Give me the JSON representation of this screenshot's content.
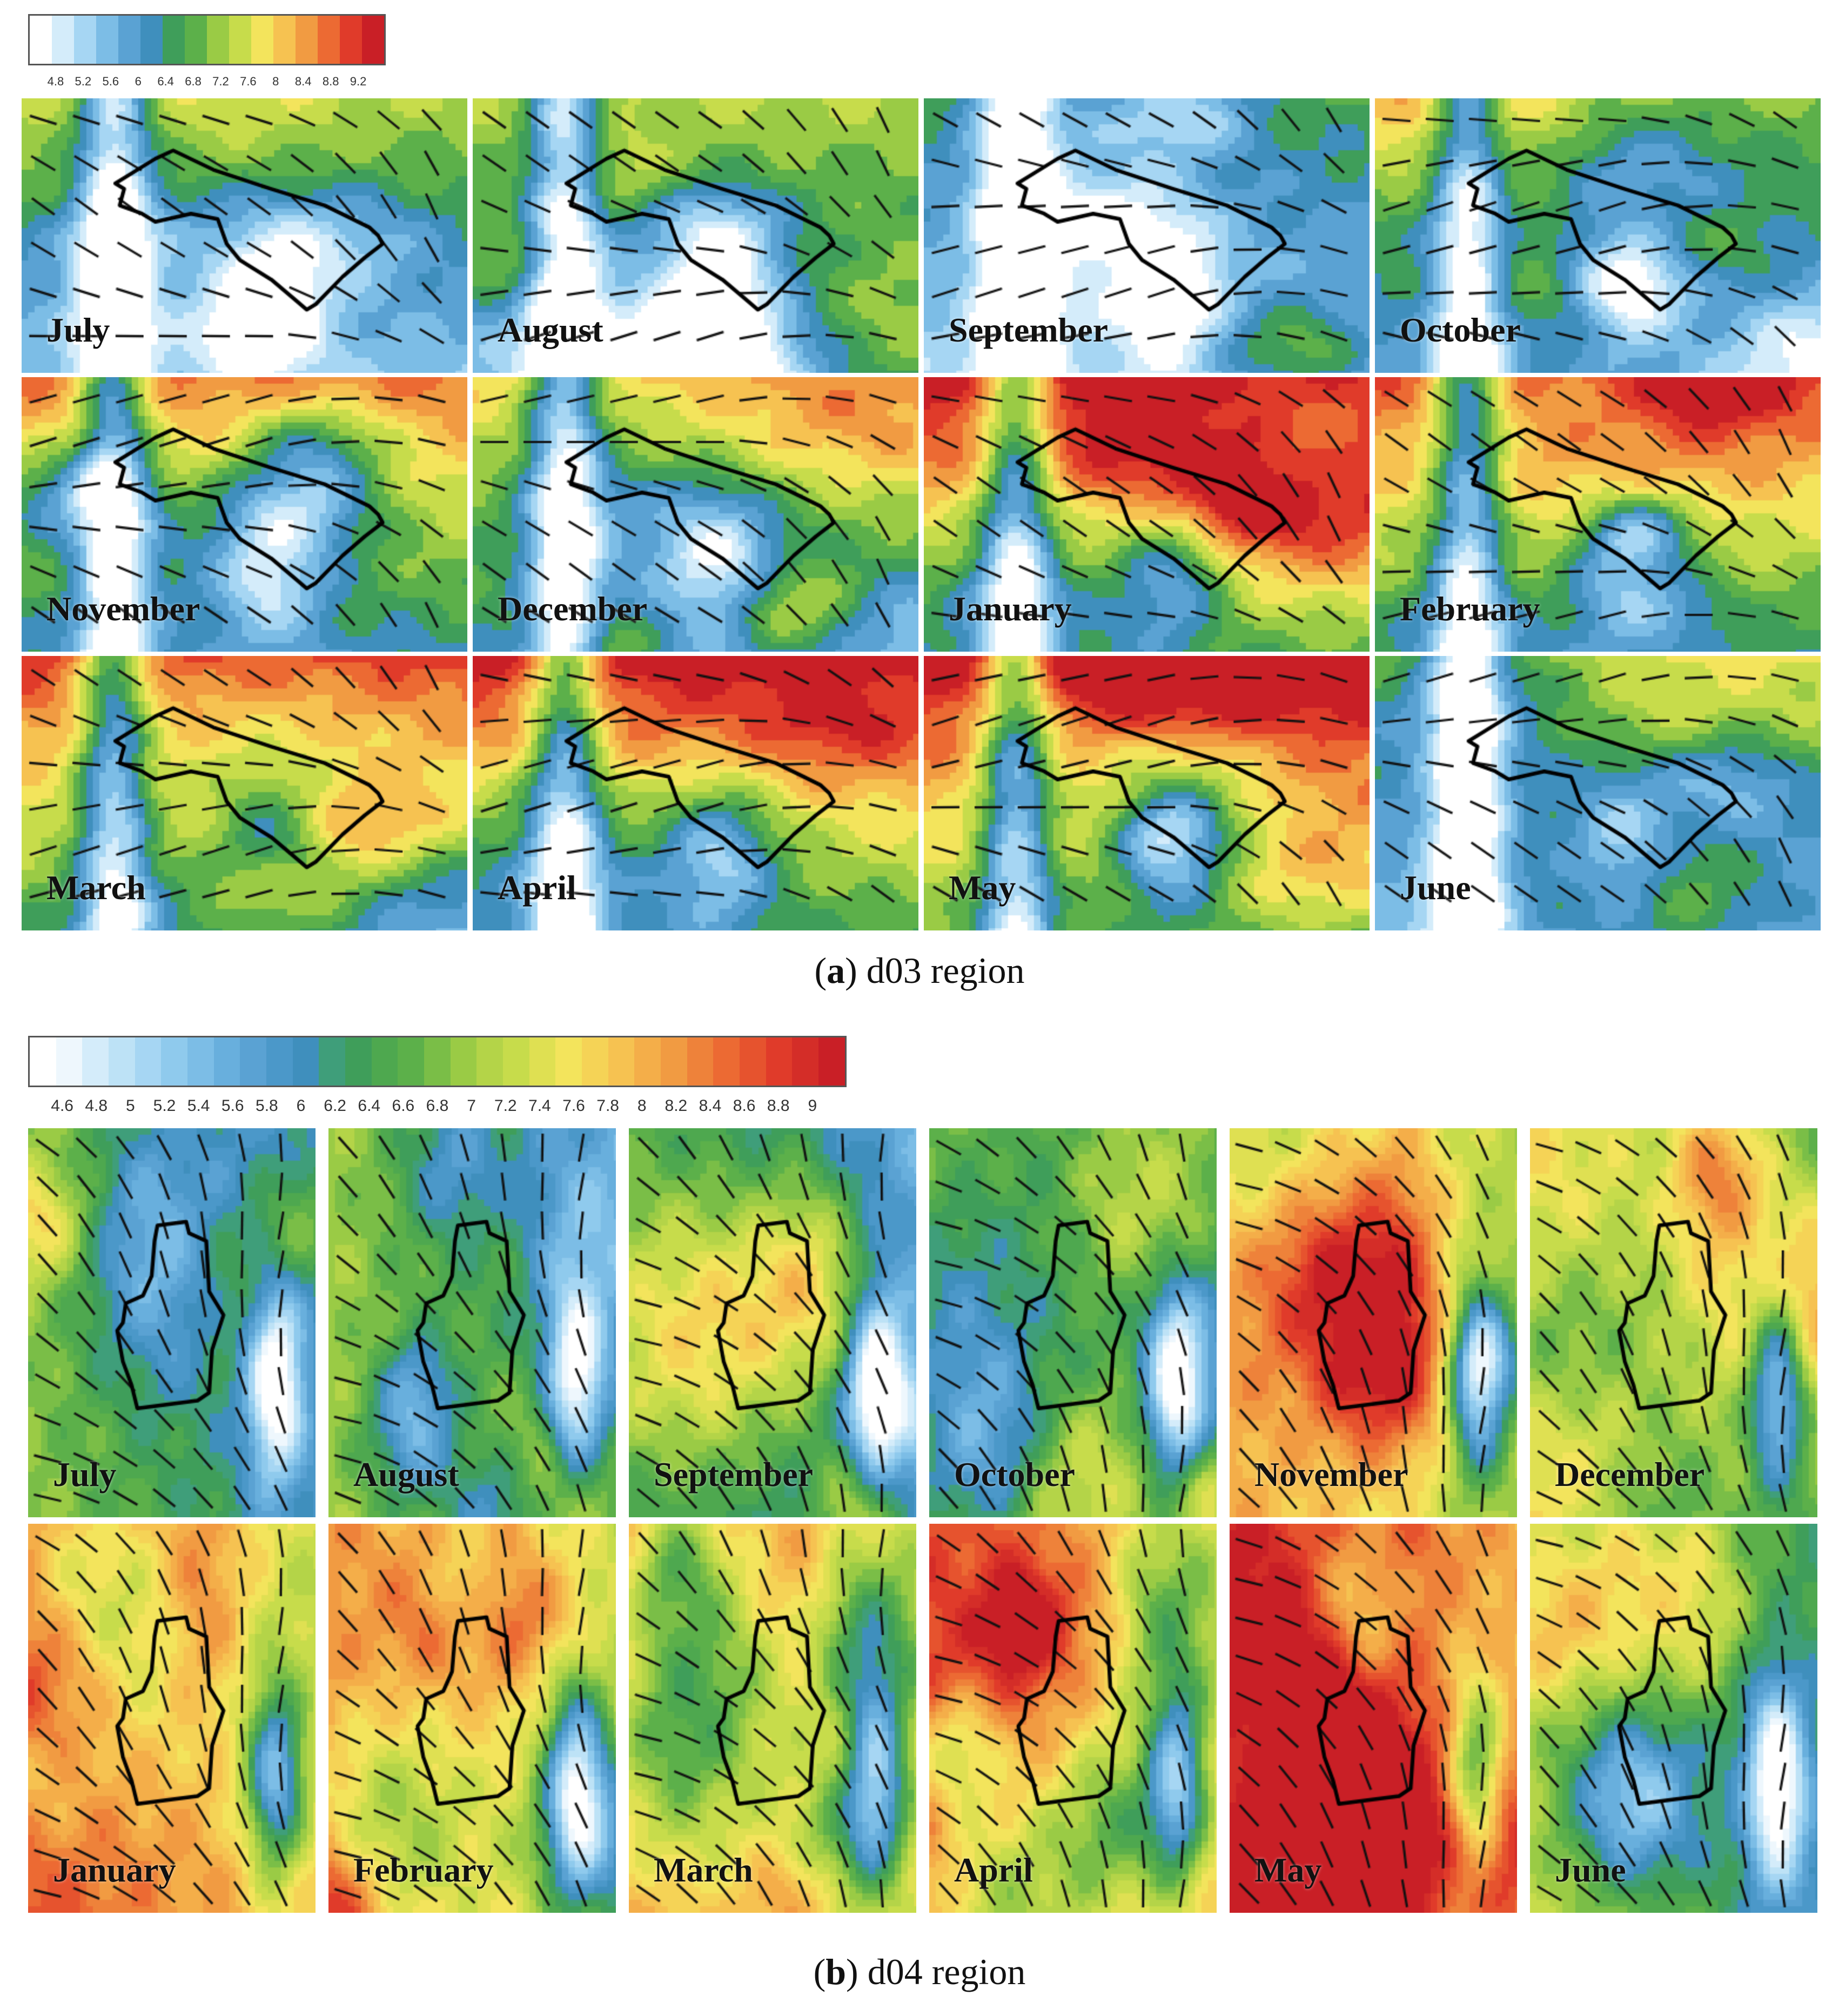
{
  "d03": {
    "colorbar": {
      "ticks": [
        "4.8",
        "5.2",
        "5.6",
        "6",
        "6.4",
        "6.8",
        "7.2",
        "7.6",
        "8",
        "8.4",
        "8.8",
        "9.2"
      ],
      "colors": [
        "#ffffff",
        "#d4ecfa",
        "#a6d6f3",
        "#7cbde6",
        "#5aa2d3",
        "#3f8fbd",
        "#3f9e5a",
        "#5cb04a",
        "#9acb45",
        "#c7dc4b",
        "#f3e45c",
        "#f6c251",
        "#f19b42",
        "#ec6a33",
        "#e03b2a",
        "#c91f26"
      ]
    },
    "months": [
      "July",
      "August",
      "September",
      "October",
      "November",
      "December",
      "January",
      "February",
      "March",
      "April",
      "May",
      "June"
    ],
    "caption": {
      "letter": "a",
      "text": "d03 region"
    }
  },
  "d04": {
    "colorbar": {
      "ticks": [
        "4.6",
        "4.8",
        "5",
        "5.2",
        "5.4",
        "5.6",
        "5.8",
        "6",
        "6.2",
        "6.4",
        "6.6",
        "6.8",
        "7",
        "7.2",
        "7.4",
        "7.6",
        "7.8",
        "8",
        "8.2",
        "8.4",
        "8.6",
        "8.8",
        "9"
      ],
      "colors": [
        "#ffffff",
        "#eef7fd",
        "#d4ecfa",
        "#bde2f6",
        "#a6d6f3",
        "#8fcaed",
        "#7cbde6",
        "#68afdd",
        "#5aa2d3",
        "#4b98c9",
        "#3f8fbd",
        "#3f9e7a",
        "#3f9e5a",
        "#4ea84f",
        "#5cb04a",
        "#7abe47",
        "#9acb45",
        "#b4d448",
        "#c7dc4b",
        "#dfe052",
        "#f3e45c",
        "#f5d356",
        "#f6c251",
        "#f4ae49",
        "#f19b42",
        "#ee823a",
        "#ec6a33",
        "#e6532e",
        "#e03b2a",
        "#d42d28",
        "#c91f26"
      ]
    },
    "months": [
      "July",
      "August",
      "September",
      "October",
      "November",
      "December",
      "January",
      "February",
      "March",
      "April",
      "May",
      "June"
    ],
    "caption": {
      "letter": "b",
      "text": "d04 region"
    }
  }
}
